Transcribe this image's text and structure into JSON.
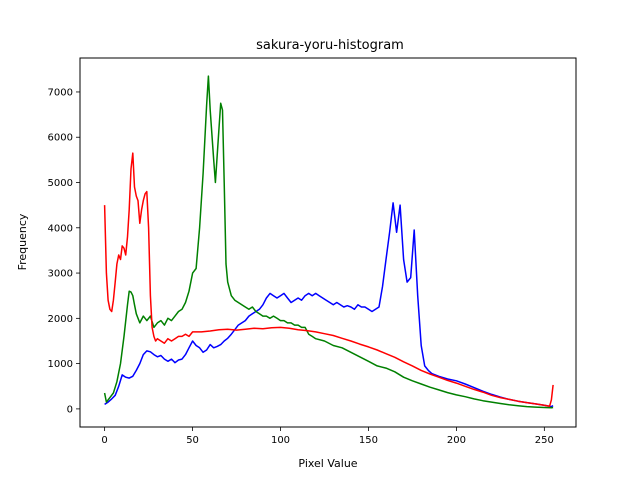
{
  "chart_data": {
    "type": "line",
    "title": "sakura-yoru-histogram",
    "xlabel": "Pixel Value",
    "ylabel": "Frequency",
    "xlim": [
      -14,
      268
    ],
    "ylim": [
      -400,
      7750
    ],
    "xticks": [
      0,
      50,
      100,
      150,
      200,
      250
    ],
    "yticks": [
      0,
      1000,
      2000,
      3000,
      4000,
      5000,
      6000,
      7000
    ],
    "grid": false,
    "legend": "none",
    "series": [
      {
        "color": "#0000ff",
        "points": [
          [
            0,
            100
          ],
          [
            2,
            150
          ],
          [
            4,
            220
          ],
          [
            6,
            300
          ],
          [
            8,
            500
          ],
          [
            10,
            750
          ],
          [
            12,
            700
          ],
          [
            14,
            680
          ],
          [
            16,
            720
          ],
          [
            18,
            850
          ],
          [
            20,
            1000
          ],
          [
            22,
            1200
          ],
          [
            24,
            1280
          ],
          [
            26,
            1260
          ],
          [
            28,
            1200
          ],
          [
            30,
            1150
          ],
          [
            32,
            1180
          ],
          [
            34,
            1100
          ],
          [
            36,
            1050
          ],
          [
            38,
            1100
          ],
          [
            40,
            1020
          ],
          [
            42,
            1080
          ],
          [
            44,
            1100
          ],
          [
            46,
            1200
          ],
          [
            48,
            1350
          ],
          [
            50,
            1500
          ],
          [
            52,
            1400
          ],
          [
            54,
            1350
          ],
          [
            56,
            1250
          ],
          [
            58,
            1300
          ],
          [
            60,
            1420
          ],
          [
            62,
            1350
          ],
          [
            64,
            1380
          ],
          [
            66,
            1420
          ],
          [
            68,
            1500
          ],
          [
            70,
            1560
          ],
          [
            72,
            1650
          ],
          [
            74,
            1750
          ],
          [
            76,
            1850
          ],
          [
            78,
            1900
          ],
          [
            80,
            1950
          ],
          [
            82,
            2050
          ],
          [
            84,
            2100
          ],
          [
            86,
            2150
          ],
          [
            88,
            2200
          ],
          [
            90,
            2300
          ],
          [
            92,
            2450
          ],
          [
            94,
            2550
          ],
          [
            96,
            2500
          ],
          [
            98,
            2450
          ],
          [
            100,
            2500
          ],
          [
            102,
            2550
          ],
          [
            104,
            2450
          ],
          [
            106,
            2350
          ],
          [
            108,
            2400
          ],
          [
            110,
            2450
          ],
          [
            112,
            2400
          ],
          [
            114,
            2500
          ],
          [
            116,
            2550
          ],
          [
            118,
            2500
          ],
          [
            120,
            2550
          ],
          [
            122,
            2500
          ],
          [
            124,
            2450
          ],
          [
            126,
            2400
          ],
          [
            128,
            2350
          ],
          [
            130,
            2300
          ],
          [
            132,
            2350
          ],
          [
            134,
            2300
          ],
          [
            136,
            2250
          ],
          [
            138,
            2280
          ],
          [
            140,
            2250
          ],
          [
            142,
            2200
          ],
          [
            144,
            2300
          ],
          [
            146,
            2250
          ],
          [
            148,
            2250
          ],
          [
            150,
            2200
          ],
          [
            152,
            2150
          ],
          [
            154,
            2200
          ],
          [
            156,
            2250
          ],
          [
            158,
            2700
          ],
          [
            160,
            3300
          ],
          [
            162,
            3900
          ],
          [
            164,
            4550
          ],
          [
            166,
            3900
          ],
          [
            168,
            4500
          ],
          [
            170,
            3300
          ],
          [
            172,
            2800
          ],
          [
            174,
            2900
          ],
          [
            176,
            3950
          ],
          [
            178,
            2500
          ],
          [
            180,
            1400
          ],
          [
            182,
            950
          ],
          [
            184,
            850
          ],
          [
            186,
            780
          ],
          [
            190,
            720
          ],
          [
            195,
            660
          ],
          [
            200,
            620
          ],
          [
            205,
            550
          ],
          [
            210,
            470
          ],
          [
            215,
            390
          ],
          [
            220,
            320
          ],
          [
            225,
            260
          ],
          [
            230,
            210
          ],
          [
            235,
            170
          ],
          [
            240,
            140
          ],
          [
            245,
            110
          ],
          [
            250,
            80
          ],
          [
            254,
            50
          ],
          [
            255,
            70
          ]
        ]
      },
      {
        "color": "#008000",
        "points": [
          [
            0,
            350
          ],
          [
            1,
            150
          ],
          [
            3,
            250
          ],
          [
            5,
            350
          ],
          [
            7,
            600
          ],
          [
            9,
            1000
          ],
          [
            11,
            1600
          ],
          [
            13,
            2300
          ],
          [
            14,
            2600
          ],
          [
            15,
            2580
          ],
          [
            16,
            2500
          ],
          [
            17,
            2300
          ],
          [
            18,
            2100
          ],
          [
            20,
            1900
          ],
          [
            22,
            2050
          ],
          [
            24,
            1950
          ],
          [
            26,
            2050
          ],
          [
            28,
            1800
          ],
          [
            30,
            1900
          ],
          [
            32,
            1950
          ],
          [
            34,
            1850
          ],
          [
            36,
            2000
          ],
          [
            38,
            1950
          ],
          [
            40,
            2050
          ],
          [
            42,
            2150
          ],
          [
            44,
            2200
          ],
          [
            46,
            2350
          ],
          [
            48,
            2600
          ],
          [
            50,
            3000
          ],
          [
            52,
            3100
          ],
          [
            54,
            4000
          ],
          [
            56,
            5200
          ],
          [
            58,
            6700
          ],
          [
            59,
            7350
          ],
          [
            60,
            6600
          ],
          [
            62,
            5500
          ],
          [
            63,
            5000
          ],
          [
            64,
            5600
          ],
          [
            65,
            6200
          ],
          [
            66,
            6750
          ],
          [
            67,
            6600
          ],
          [
            68,
            5000
          ],
          [
            69,
            3200
          ],
          [
            70,
            2800
          ],
          [
            72,
            2500
          ],
          [
            74,
            2400
          ],
          [
            76,
            2350
          ],
          [
            78,
            2300
          ],
          [
            80,
            2250
          ],
          [
            82,
            2200
          ],
          [
            84,
            2250
          ],
          [
            86,
            2150
          ],
          [
            88,
            2100
          ],
          [
            90,
            2050
          ],
          [
            92,
            2050
          ],
          [
            94,
            2000
          ],
          [
            96,
            2050
          ],
          [
            98,
            2000
          ],
          [
            100,
            1950
          ],
          [
            102,
            1950
          ],
          [
            104,
            1900
          ],
          [
            106,
            1900
          ],
          [
            108,
            1850
          ],
          [
            110,
            1850
          ],
          [
            112,
            1800
          ],
          [
            114,
            1800
          ],
          [
            116,
            1650
          ],
          [
            118,
            1600
          ],
          [
            120,
            1550
          ],
          [
            125,
            1500
          ],
          [
            130,
            1400
          ],
          [
            135,
            1350
          ],
          [
            140,
            1250
          ],
          [
            145,
            1150
          ],
          [
            150,
            1050
          ],
          [
            155,
            950
          ],
          [
            160,
            900
          ],
          [
            165,
            820
          ],
          [
            170,
            700
          ],
          [
            175,
            620
          ],
          [
            180,
            550
          ],
          [
            185,
            480
          ],
          [
            190,
            420
          ],
          [
            195,
            360
          ],
          [
            200,
            310
          ],
          [
            205,
            270
          ],
          [
            210,
            220
          ],
          [
            215,
            180
          ],
          [
            220,
            150
          ],
          [
            225,
            120
          ],
          [
            230,
            90
          ],
          [
            235,
            70
          ],
          [
            240,
            50
          ],
          [
            245,
            40
          ],
          [
            250,
            30
          ],
          [
            254,
            25
          ],
          [
            255,
            30
          ]
        ]
      },
      {
        "color": "#ff0000",
        "points": [
          [
            0,
            4500
          ],
          [
            1,
            3000
          ],
          [
            2,
            2400
          ],
          [
            3,
            2200
          ],
          [
            4,
            2150
          ],
          [
            5,
            2400
          ],
          [
            6,
            2800
          ],
          [
            7,
            3200
          ],
          [
            8,
            3400
          ],
          [
            9,
            3300
          ],
          [
            10,
            3600
          ],
          [
            11,
            3550
          ],
          [
            12,
            3400
          ],
          [
            13,
            3800
          ],
          [
            14,
            4400
          ],
          [
            15,
            5300
          ],
          [
            16,
            5650
          ],
          [
            17,
            4900
          ],
          [
            18,
            4700
          ],
          [
            19,
            4600
          ],
          [
            20,
            4100
          ],
          [
            21,
            4400
          ],
          [
            22,
            4600
          ],
          [
            23,
            4750
          ],
          [
            24,
            4800
          ],
          [
            25,
            4000
          ],
          [
            26,
            2500
          ],
          [
            27,
            1800
          ],
          [
            28,
            1600
          ],
          [
            29,
            1500
          ],
          [
            30,
            1550
          ],
          [
            32,
            1500
          ],
          [
            34,
            1450
          ],
          [
            36,
            1550
          ],
          [
            38,
            1500
          ],
          [
            40,
            1550
          ],
          [
            42,
            1600
          ],
          [
            44,
            1600
          ],
          [
            46,
            1650
          ],
          [
            48,
            1600
          ],
          [
            50,
            1700
          ],
          [
            55,
            1700
          ],
          [
            60,
            1720
          ],
          [
            65,
            1750
          ],
          [
            70,
            1760
          ],
          [
            75,
            1740
          ],
          [
            80,
            1760
          ],
          [
            85,
            1780
          ],
          [
            90,
            1770
          ],
          [
            95,
            1790
          ],
          [
            100,
            1800
          ],
          [
            105,
            1780
          ],
          [
            110,
            1750
          ],
          [
            115,
            1730
          ],
          [
            120,
            1700
          ],
          [
            125,
            1660
          ],
          [
            130,
            1620
          ],
          [
            135,
            1560
          ],
          [
            140,
            1500
          ],
          [
            145,
            1430
          ],
          [
            150,
            1370
          ],
          [
            155,
            1300
          ],
          [
            160,
            1220
          ],
          [
            165,
            1140
          ],
          [
            170,
            1040
          ],
          [
            175,
            950
          ],
          [
            180,
            850
          ],
          [
            185,
            770
          ],
          [
            190,
            700
          ],
          [
            195,
            630
          ],
          [
            200,
            570
          ],
          [
            205,
            500
          ],
          [
            210,
            430
          ],
          [
            215,
            370
          ],
          [
            220,
            300
          ],
          [
            225,
            250
          ],
          [
            230,
            210
          ],
          [
            235,
            170
          ],
          [
            240,
            140
          ],
          [
            245,
            110
          ],
          [
            250,
            80
          ],
          [
            253,
            60
          ],
          [
            254,
            200
          ],
          [
            255,
            530
          ]
        ]
      }
    ]
  }
}
